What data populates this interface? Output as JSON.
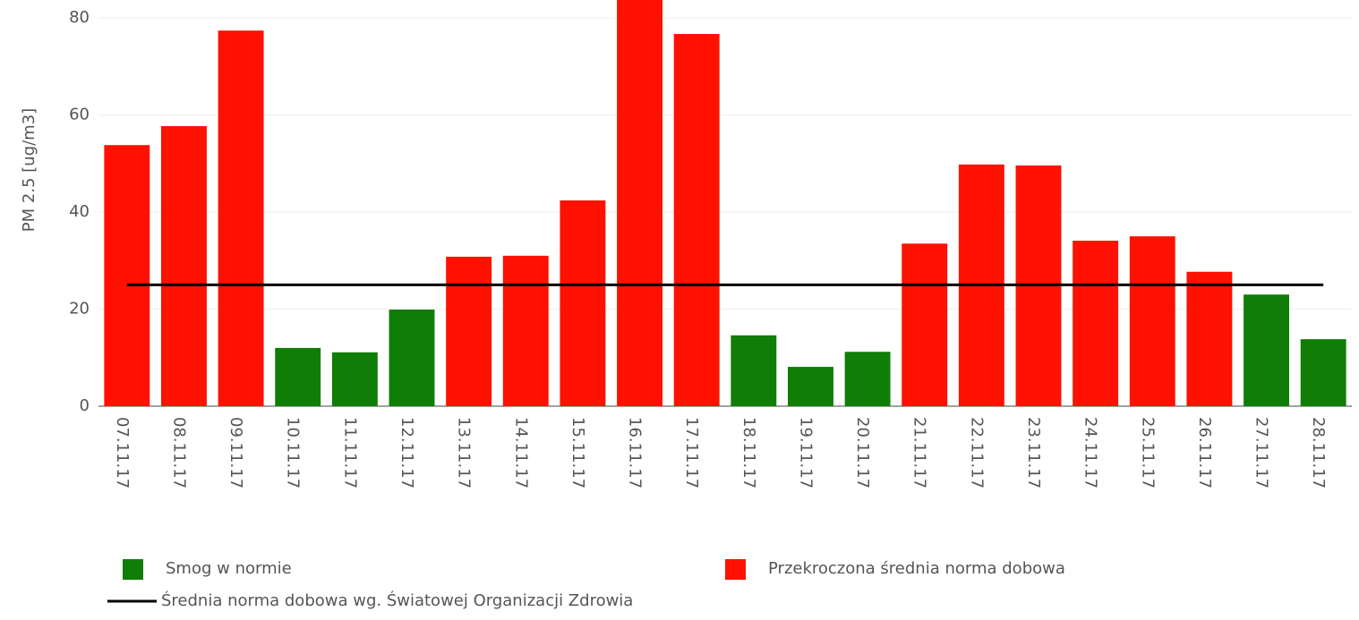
{
  "chart_data": {
    "type": "bar",
    "y_label": "PM 2.5 [ug/m3]",
    "categories": [
      "07.11.17",
      "08.11.17",
      "09.11.17",
      "10.11.17",
      "11.11.17",
      "12.11.17",
      "13.11.17",
      "14.11.17",
      "15.11.17",
      "16.11.17",
      "17.11.17",
      "18.11.17",
      "19.11.17",
      "20.11.17",
      "21.11.17",
      "22.11.17",
      "23.11.17",
      "24.11.17",
      "25.11.17",
      "26.11.17",
      "27.11.17",
      "28.11.17"
    ],
    "series": [
      {
        "name": "Smog w normie",
        "color": "#0f7d06",
        "values": [
          null,
          null,
          null,
          12.0,
          11.1,
          19.9,
          null,
          null,
          null,
          null,
          null,
          14.6,
          8.1,
          11.2,
          null,
          null,
          null,
          null,
          null,
          null,
          23.0,
          13.8
        ]
      },
      {
        "name": "Przekroczona średnia norma dobowa",
        "color": "#fe1100",
        "values": [
          53.8,
          57.7,
          77.4,
          null,
          null,
          null,
          30.8,
          31.0,
          42.4,
          86,
          76.7,
          null,
          null,
          null,
          33.5,
          49.8,
          49.6,
          34.1,
          35.0,
          27.7,
          null,
          null
        ]
      },
      {
        "name": "Średnia norma dobowa wg. Światowej Organizacji Zdrowia",
        "color": "#000000",
        "type": "line",
        "values": [
          25,
          25,
          25,
          25,
          25,
          25,
          25,
          25,
          25,
          25,
          25,
          25,
          25,
          25,
          25,
          25,
          25,
          25,
          25,
          25,
          25,
          25
        ]
      }
    ],
    "ylim": [
      0,
      83.7
    ],
    "yticks": [
      0,
      20,
      40,
      60,
      80
    ],
    "grid": true
  }
}
